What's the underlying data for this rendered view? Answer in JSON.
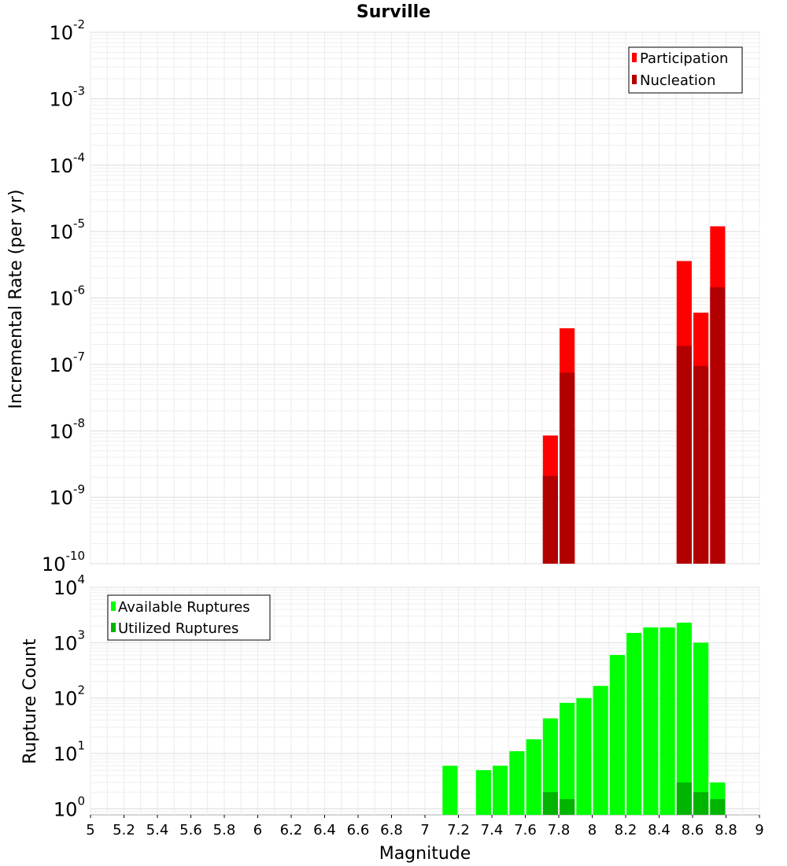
{
  "chart_data": [
    {
      "type": "bar",
      "title": "Surville",
      "xlabel": "",
      "ylabel": "Incremental Rate (per yr)",
      "xlim": [
        5,
        9
      ],
      "ylim": [
        1e-10,
        0.01
      ],
      "yscale": "log",
      "grid": true,
      "legend_position": "top-right",
      "bar_width": 0.09,
      "series": [
        {
          "name": "Participation",
          "color": "#ff0000",
          "x": [
            7.75,
            7.85,
            8.55,
            8.65,
            8.75
          ],
          "values": [
            8.5e-09,
            3.5e-07,
            3.6e-06,
            6e-07,
            1.2e-05
          ]
        },
        {
          "name": "Nucleation",
          "color": "#b20000",
          "x": [
            7.75,
            7.85,
            8.55,
            8.65,
            8.75
          ],
          "values": [
            2.1e-09,
            7.5e-08,
            1.9e-07,
            9.5e-08,
            1.45e-06
          ]
        }
      ],
      "yticks": [
        {
          "base": "10",
          "exp": "-2"
        },
        {
          "base": "10",
          "exp": "-3"
        },
        {
          "base": "10",
          "exp": "-4"
        },
        {
          "base": "10",
          "exp": "-5"
        },
        {
          "base": "10",
          "exp": "-6"
        },
        {
          "base": "10",
          "exp": "-7"
        },
        {
          "base": "10",
          "exp": "-8"
        },
        {
          "base": "10",
          "exp": "-9"
        },
        {
          "base": "10",
          "exp": "-10"
        }
      ]
    },
    {
      "type": "bar",
      "title": "",
      "xlabel": "Magnitude",
      "ylabel": "Rupture Count",
      "xlim": [
        5,
        9
      ],
      "ylim": [
        0.78,
        10000
      ],
      "yscale": "log",
      "grid": true,
      "legend_position": "top-left",
      "bar_width": 0.09,
      "series": [
        {
          "name": "Available Ruptures",
          "color": "#00ff00",
          "x": [
            7.15,
            7.35,
            7.45,
            7.55,
            7.65,
            7.75,
            7.85,
            7.95,
            8.05,
            8.15,
            8.25,
            8.35,
            8.45,
            8.55,
            8.65,
            8.75
          ],
          "values": [
            6,
            5,
            6,
            11,
            18,
            43,
            82,
            100,
            166,
            600,
            1500,
            1890,
            1890,
            2300,
            1000,
            3
          ]
        },
        {
          "name": "Utilized Ruptures",
          "color": "#00b400",
          "x": [
            7.75,
            7.85,
            8.55,
            8.65,
            8.75
          ],
          "values": [
            2,
            1.5,
            3,
            2,
            1.5
          ]
        }
      ],
      "yticks": [
        {
          "base": "10",
          "exp": "4"
        },
        {
          "base": "10",
          "exp": "3"
        },
        {
          "base": "10",
          "exp": "2"
        },
        {
          "base": "10",
          "exp": "1"
        },
        {
          "base": "10",
          "exp": "0"
        }
      ],
      "xticks": [
        "5",
        "5.2",
        "5.4",
        "5.6",
        "5.8",
        "6",
        "6.2",
        "6.4",
        "6.6",
        "6.8",
        "7",
        "7.2",
        "7.4",
        "7.6",
        "7.8",
        "8",
        "8.2",
        "8.4",
        "8.6",
        "8.8",
        "9"
      ]
    }
  ]
}
